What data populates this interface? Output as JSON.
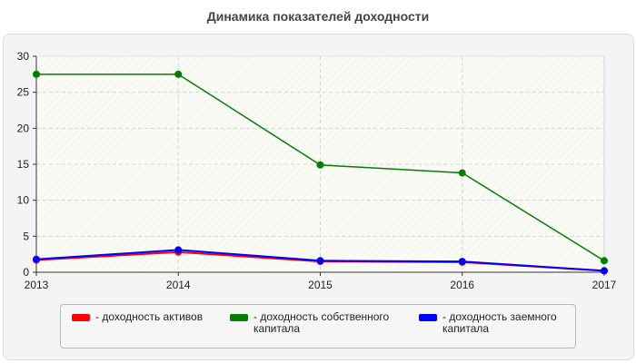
{
  "chart_data": {
    "type": "line",
    "title": "Динамика показателей доходности",
    "x": [
      "2013",
      "2014",
      "2015",
      "2016",
      "2017"
    ],
    "ylim": [
      0,
      30
    ],
    "yticks": [
      0,
      5,
      10,
      15,
      20,
      25,
      30
    ],
    "grid": true,
    "legend_position": "bottom",
    "series": [
      {
        "name": "доходность собственного капитала",
        "legend_label": "- доходность собственного капитала",
        "color": "#008000",
        "values": [
          27.5,
          27.5,
          14.9,
          13.8,
          1.6
        ]
      },
      {
        "name": "доходность активов",
        "legend_label": "- доходность активов",
        "color": "#ff0000",
        "values": [
          1.7,
          2.8,
          1.5,
          1.4,
          0.2
        ]
      },
      {
        "name": "доходность заемного капитала",
        "legend_label": "- доходность заемного капитала",
        "color": "#0000ff",
        "values": [
          1.8,
          3.1,
          1.6,
          1.5,
          0.2
        ]
      }
    ]
  }
}
